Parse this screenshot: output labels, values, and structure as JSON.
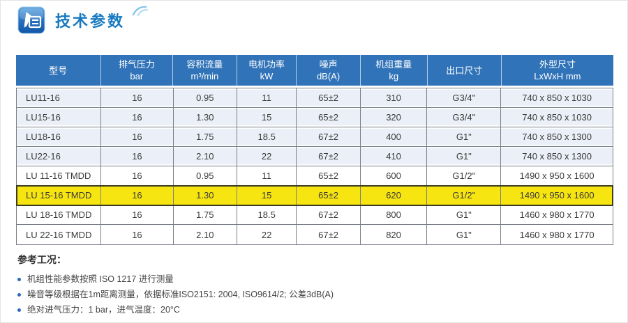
{
  "page": {
    "title": "技术参数"
  },
  "table": {
    "row_keys": [
      "model",
      "pressure",
      "flow",
      "power",
      "noise",
      "weight",
      "outlet",
      "dimensions"
    ],
    "columns": [
      {
        "label": "型号",
        "unit": ""
      },
      {
        "label": "排气压力",
        "unit": "bar"
      },
      {
        "label": "容积流量",
        "unit": "m³/min"
      },
      {
        "label": "电机功率",
        "unit": "kW"
      },
      {
        "label": "噪声",
        "unit": "dB(A)"
      },
      {
        "label": "机组重量",
        "unit": "kg"
      },
      {
        "label": "出口尺寸",
        "unit": ""
      },
      {
        "label": "外型尺寸",
        "unit": "LxWxH mm"
      }
    ],
    "rows": [
      {
        "model": "LU11-16",
        "pressure": "16",
        "flow": "0.95",
        "power": "11",
        "noise": "65±2",
        "weight": "310",
        "outlet": "G3/4\"",
        "dimensions": "740 x 850 x 1030",
        "shaded": true,
        "highlight": false
      },
      {
        "model": "LU15-16",
        "pressure": "16",
        "flow": "1.30",
        "power": "15",
        "noise": "65±2",
        "weight": "320",
        "outlet": "G3/4\"",
        "dimensions": "740 x 850 x 1030",
        "shaded": true,
        "highlight": false
      },
      {
        "model": "LU18-16",
        "pressure": "16",
        "flow": "1.75",
        "power": "18.5",
        "noise": "67±2",
        "weight": "400",
        "outlet": "G1\"",
        "dimensions": "740 x 850 x 1300",
        "shaded": true,
        "highlight": false
      },
      {
        "model": "LU22-16",
        "pressure": "16",
        "flow": "2.10",
        "power": "22",
        "noise": "67±2",
        "weight": "410",
        "outlet": "G1\"",
        "dimensions": "740 x 850 x 1300",
        "shaded": true,
        "highlight": false
      },
      {
        "model": "LU 11-16 TMDD",
        "pressure": "16",
        "flow": "0.95",
        "power": "11",
        "noise": "65±2",
        "weight": "600",
        "outlet": "G1/2\"",
        "dimensions": "1490 x 950 x 1600",
        "shaded": false,
        "highlight": false
      },
      {
        "model": "LU 15-16 TMDD",
        "pressure": "16",
        "flow": "1.30",
        "power": "15",
        "noise": "65±2",
        "weight": "620",
        "outlet": "G1/2\"",
        "dimensions": "1490 x 950 x 1600",
        "shaded": false,
        "highlight": true
      },
      {
        "model": "LU 18-16 TMDD",
        "pressure": "16",
        "flow": "1.75",
        "power": "18.5",
        "noise": "67±2",
        "weight": "800",
        "outlet": "G1\"",
        "dimensions": "1460 x 980 x 1770",
        "shaded": false,
        "highlight": false
      },
      {
        "model": "LU 22-16 TMDD",
        "pressure": "16",
        "flow": "2.10",
        "power": "22",
        "noise": "67±2",
        "weight": "820",
        "outlet": "G1\"",
        "dimensions": "1460 x 980 x 1770",
        "shaded": false,
        "highlight": false
      }
    ]
  },
  "notes": {
    "heading": "参考工况：",
    "items": [
      "机组性能参数按照 ISO 1217 进行测量",
      "噪音等级根据在1m距离测量，依据标准ISO2151: 2004, ISO9614/2; 公差3dB(A)",
      "绝对进气压力：1 bar，进气温度：20°C"
    ]
  },
  "icons": {
    "title_icon": "pen-document-icon",
    "decoration": "swoosh-icon"
  },
  "colors": {
    "title_color": "#1879c0",
    "header_bg": "#3173b8",
    "row_shaded": "#ebeff7",
    "highlight_bg": "#f7e512",
    "highlight_border": "#3c3c1e",
    "grid_line": "#7a7f87",
    "bullet_color": "#2a6cb8",
    "icon_gradient_top": "#5aa3e0",
    "icon_gradient_bottom": "#0f57a7",
    "swoosh_color": "#85c6ea"
  }
}
